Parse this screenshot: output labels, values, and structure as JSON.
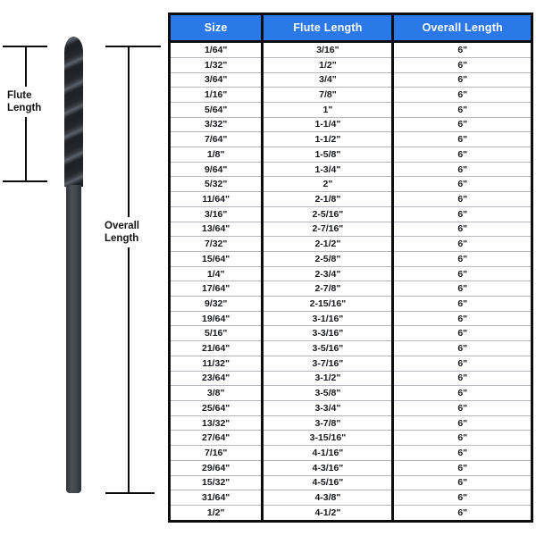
{
  "diagram": {
    "flute_label_line1": "Flute",
    "flute_label_line2": "Length",
    "overall_label_line1": "Overall",
    "overall_label_line2": "Length",
    "drill_bit": "black-oxide twist drill bit, flutes at top, smooth shank below"
  },
  "colors": {
    "header_bg": "#2b78e9",
    "header_text": "#ffffff",
    "table_border": "#0d0d0d",
    "row_divider": "#b5b9bf",
    "cell_text": "#17191c",
    "background": "#ffffff"
  },
  "chart_data": {
    "type": "table",
    "title": "",
    "columns": [
      "Size",
      "Flute Length",
      "Overall Length"
    ],
    "rows": [
      [
        "1/64\"",
        "3/16\"",
        "6\""
      ],
      [
        "1/32\"",
        "1/2\"",
        "6\""
      ],
      [
        "3/64\"",
        "3/4\"",
        "6\""
      ],
      [
        "1/16\"",
        "7/8\"",
        "6\""
      ],
      [
        "5/64\"",
        "1\"",
        "6\""
      ],
      [
        "3/32\"",
        "1-1/4\"",
        "6\""
      ],
      [
        "7/64\"",
        "1-1/2\"",
        "6\""
      ],
      [
        "1/8\"",
        "1-5/8\"",
        "6\""
      ],
      [
        "9/64\"",
        "1-3/4\"",
        "6\""
      ],
      [
        "5/32\"",
        "2\"",
        "6\""
      ],
      [
        "11/64\"",
        "2-1/8\"",
        "6\""
      ],
      [
        "3/16\"",
        "2-5/16\"",
        "6\""
      ],
      [
        "13/64\"",
        "2-7/16\"",
        "6\""
      ],
      [
        "7/32\"",
        "2-1/2\"",
        "6\""
      ],
      [
        "15/64\"",
        "2-5/8\"",
        "6\""
      ],
      [
        "1/4\"",
        "2-3/4\"",
        "6\""
      ],
      [
        "17/64\"",
        "2-7/8\"",
        "6\""
      ],
      [
        "9/32\"",
        "2-15/16\"",
        "6\""
      ],
      [
        "19/64\"",
        "3-1/16\"",
        "6\""
      ],
      [
        "5/16\"",
        "3-3/16\"",
        "6\""
      ],
      [
        "21/64\"",
        "3-5/16\"",
        "6\""
      ],
      [
        "11/32\"",
        "3-7/16\"",
        "6\""
      ],
      [
        "23/64\"",
        "3-1/2\"",
        "6\""
      ],
      [
        "3/8\"",
        "3-5/8\"",
        "6\""
      ],
      [
        "25/64\"",
        "3-3/4\"",
        "6\""
      ],
      [
        "13/32\"",
        "3-7/8\"",
        "6\""
      ],
      [
        "27/64\"",
        "3-15/16\"",
        "6\""
      ],
      [
        "7/16\"",
        "4-1/16\"",
        "6\""
      ],
      [
        "29/64\"",
        "4-3/16\"",
        "6\""
      ],
      [
        "15/32\"",
        "4-5/16\"",
        "6\""
      ],
      [
        "31/64\"",
        "4-3/8\"",
        "6\""
      ],
      [
        "1/2\"",
        "4-1/2\"",
        "6\""
      ]
    ]
  }
}
